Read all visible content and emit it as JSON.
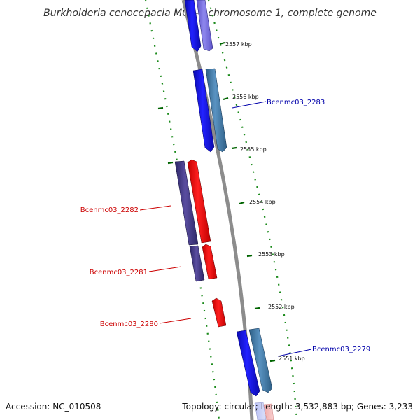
{
  "title": "Burkholderia cenocepacia MC0-3 chromosome 1, complete genome",
  "footer": {
    "accession": "Accession: NC_010508",
    "topology": "Topology: circular; Length: 3,532,883 bp; Genes: 3,233"
  },
  "colors": {
    "backbone": "#8c8c8c",
    "forward_cds": "#0000ee",
    "reverse_cds": "#ee0000",
    "forward_gene": "#4682b4",
    "reverse_gene": "#483d8b",
    "tick": "#006400",
    "forward_label": "#0000aa",
    "reverse_label": "#cc0000"
  },
  "scale_labels": [
    "2557 kbp",
    "2556 kbp",
    "2555 kbp",
    "2554 kbp",
    "2553 kbp",
    "2552 kbp",
    "2551 kbp"
  ],
  "genes": [
    {
      "name": "Bcenmc03_2283",
      "strand": "forward"
    },
    {
      "name": "Bcenmc03_2282",
      "strand": "reverse"
    },
    {
      "name": "Bcenmc03_2281",
      "strand": "reverse"
    },
    {
      "name": "Bcenmc03_2280",
      "strand": "reverse"
    },
    {
      "name": "Bcenmc03_2279",
      "strand": "forward"
    }
  ]
}
